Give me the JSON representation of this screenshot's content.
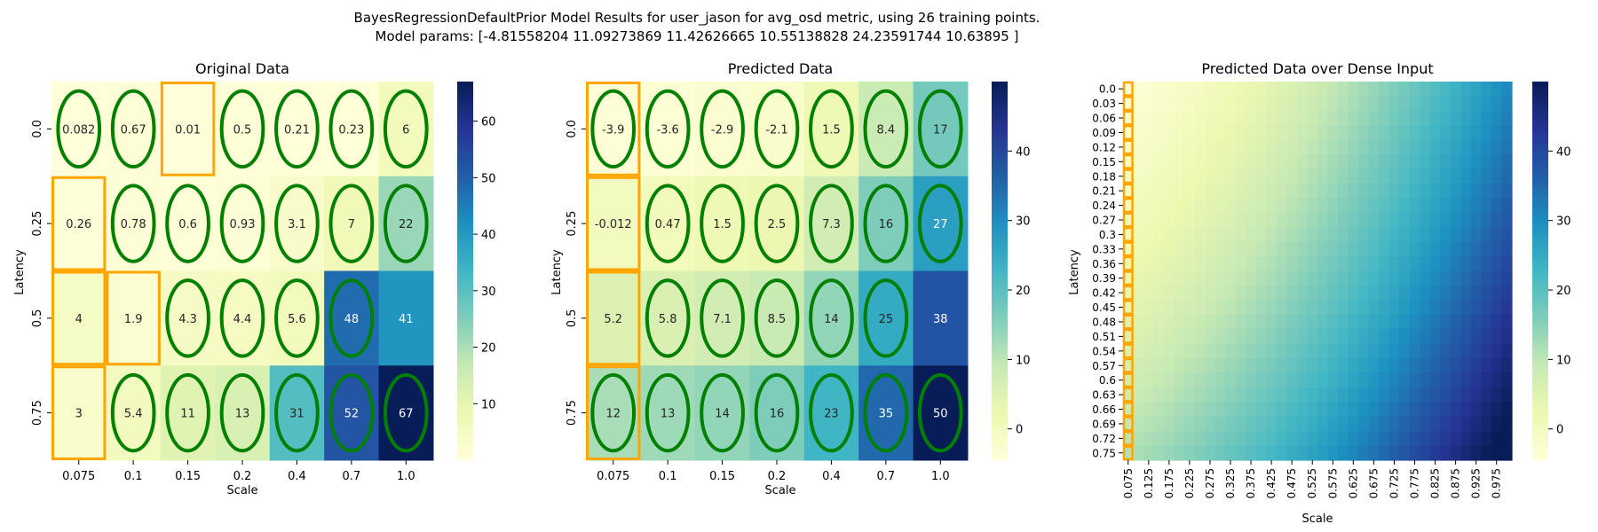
{
  "figure": {
    "title_line1": "BayesRegressionDefaultPrior Model Results for user_jason for avg_osd metric, using 26 training points.",
    "title_line2": "Model params: [-4.81558204 11.09273869 11.42626665 10.55138828 24.23591744 10.63895    ]"
  },
  "chart_data": [
    {
      "type": "heatmap",
      "title": "Original Data",
      "xlabel": "Scale",
      "ylabel": "Latency",
      "x_tick_labels": [
        "0.075",
        "0.1",
        "0.15",
        "0.2",
        "0.4",
        "0.7",
        "1.0"
      ],
      "y_tick_labels": [
        "0.0",
        "0.25",
        "0.5",
        "0.75"
      ],
      "values": [
        [
          0.082,
          0.67,
          0.01,
          0.5,
          0.21,
          0.23,
          6
        ],
        [
          0.26,
          0.78,
          0.6,
          0.93,
          3.1,
          7,
          22
        ],
        [
          4,
          1.9,
          4.3,
          4.4,
          5.6,
          48,
          41
        ],
        [
          3,
          5.4,
          11,
          13,
          31,
          52,
          67
        ]
      ],
      "cell_labels": [
        [
          "0.082",
          "0.67",
          "0.01",
          "0.5",
          "0.21",
          "0.23",
          "6"
        ],
        [
          "0.26",
          "0.78",
          "0.6",
          "0.93",
          "3.1",
          "7",
          "22"
        ],
        [
          "4",
          "1.9",
          "4.3",
          "4.4",
          "5.6",
          "48",
          "41"
        ],
        [
          "3",
          "5.4",
          "11",
          "13",
          "31",
          "52",
          "67"
        ]
      ],
      "colorbar": {
        "min": 0.01,
        "max": 67,
        "ticks": [
          "10",
          "20",
          "30",
          "40",
          "50",
          "60"
        ],
        "tick_values": [
          10,
          20,
          30,
          40,
          50,
          60
        ]
      },
      "colormap": "YlGnBu",
      "ellipse_marked_cells": [
        [
          0,
          0
        ],
        [
          0,
          1
        ],
        [
          0,
          3
        ],
        [
          0,
          4
        ],
        [
          0,
          5
        ],
        [
          0,
          6
        ],
        [
          1,
          1
        ],
        [
          1,
          2
        ],
        [
          1,
          3
        ],
        [
          1,
          4
        ],
        [
          1,
          5
        ],
        [
          1,
          6
        ],
        [
          2,
          2
        ],
        [
          2,
          3
        ],
        [
          2,
          4
        ],
        [
          2,
          5
        ],
        [
          3,
          1
        ],
        [
          3,
          2
        ],
        [
          3,
          3
        ],
        [
          3,
          4
        ],
        [
          3,
          5
        ],
        [
          3,
          6
        ]
      ],
      "box_marked_cells": [
        [
          0,
          2
        ],
        [
          1,
          0
        ],
        [
          2,
          0
        ],
        [
          2,
          1
        ],
        [
          3,
          0
        ]
      ],
      "ellipse_color": "#008000",
      "box_color": "#FFA500"
    },
    {
      "type": "heatmap",
      "title": "Predicted Data",
      "xlabel": "Scale",
      "ylabel": "Latency",
      "x_tick_labels": [
        "0.075",
        "0.1",
        "0.15",
        "0.2",
        "0.4",
        "0.7",
        "1.0"
      ],
      "y_tick_labels": [
        "0.0",
        "0.25",
        "0.5",
        "0.75"
      ],
      "values": [
        [
          -3.9,
          -3.6,
          -2.9,
          -2.1,
          1.5,
          8.4,
          17
        ],
        [
          -0.012,
          0.47,
          1.5,
          2.5,
          7.3,
          16,
          27
        ],
        [
          5.2,
          5.8,
          7.1,
          8.5,
          14,
          25,
          38
        ],
        [
          12,
          13,
          14,
          16,
          23,
          35,
          50
        ]
      ],
      "cell_labels": [
        [
          "-3.9",
          "-3.6",
          "-2.9",
          "-2.1",
          "1.5",
          "8.4",
          "17"
        ],
        [
          "-0.012",
          "0.47",
          "1.5",
          "2.5",
          "7.3",
          "16",
          "27"
        ],
        [
          "5.2",
          "5.8",
          "7.1",
          "8.5",
          "14",
          "25",
          "38"
        ],
        [
          "12",
          "13",
          "14",
          "16",
          "23",
          "35",
          "50"
        ]
      ],
      "colorbar": {
        "min": -4.5,
        "max": 50,
        "ticks": [
          "0",
          "10",
          "20",
          "30",
          "40"
        ],
        "tick_values": [
          0,
          10,
          20,
          30,
          40
        ]
      },
      "colormap": "YlGnBu",
      "ellipse_marked_cells": [
        [
          0,
          0
        ],
        [
          0,
          1
        ],
        [
          0,
          2
        ],
        [
          0,
          3
        ],
        [
          0,
          4
        ],
        [
          0,
          5
        ],
        [
          0,
          6
        ],
        [
          1,
          1
        ],
        [
          1,
          2
        ],
        [
          1,
          3
        ],
        [
          1,
          4
        ],
        [
          1,
          5
        ],
        [
          1,
          6
        ],
        [
          2,
          1
        ],
        [
          2,
          2
        ],
        [
          2,
          3
        ],
        [
          2,
          4
        ],
        [
          2,
          5
        ],
        [
          3,
          0
        ],
        [
          3,
          1
        ],
        [
          3,
          2
        ],
        [
          3,
          3
        ],
        [
          3,
          4
        ],
        [
          3,
          5
        ],
        [
          3,
          6
        ]
      ],
      "box_marked_cells": [
        [
          0,
          0
        ],
        [
          1,
          0
        ],
        [
          2,
          0
        ],
        [
          3,
          0
        ]
      ],
      "ellipse_color": "#008000",
      "box_color": "#FFA500"
    },
    {
      "type": "heatmap",
      "title": "Predicted Data over Dense Input",
      "xlabel": "Scale",
      "ylabel": "Latency",
      "x_tick_labels": [
        "0.075",
        "0.125",
        "0.175",
        "0.225",
        "0.275",
        "0.325",
        "0.375",
        "0.425",
        "0.475",
        "0.525",
        "0.575",
        "0.625",
        "0.675",
        "0.725",
        "0.775",
        "0.825",
        "0.875",
        "0.925",
        "0.975"
      ],
      "y_tick_labels": [
        "0.0",
        "0.03",
        "0.06",
        "0.09",
        "0.12",
        "0.15",
        "0.18",
        "0.21",
        "0.24",
        "0.27",
        "0.3",
        "0.33",
        "0.36",
        "0.39",
        "0.42",
        "0.45",
        "0.48",
        "0.51",
        "0.54",
        "0.57",
        "0.6",
        "0.63",
        "0.66",
        "0.69",
        "0.72",
        "0.75"
      ],
      "x_range": [
        0.075,
        1.0
      ],
      "y_range": [
        0.0,
        0.75
      ],
      "x_count": 38,
      "y_count": 26,
      "model": "z = -4.81558204 + 11.09273869*x + 11.42626665*y + 10.55138828*x*y + 24.23591744*x^2 + 10.63895*y^2",
      "colorbar": {
        "min": -4.5,
        "max": 50,
        "ticks": [
          "0",
          "10",
          "20",
          "30",
          "40"
        ],
        "tick_values": [
          0,
          10,
          20,
          30,
          40
        ]
      },
      "colormap": "YlGnBu",
      "box_marked_column": 0,
      "box_color": "#FFA500"
    }
  ]
}
